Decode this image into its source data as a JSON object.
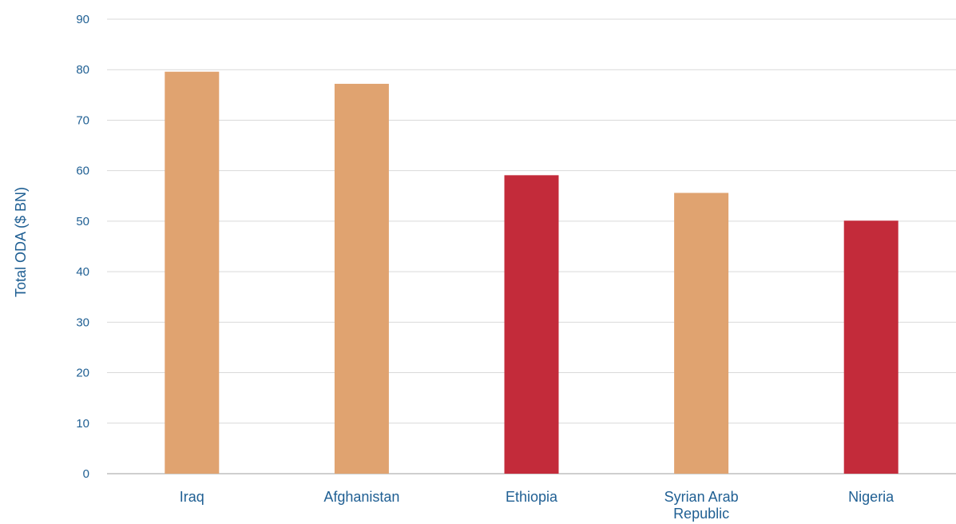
{
  "chart_data": {
    "type": "bar",
    "title": "",
    "xlabel": "",
    "ylabel": "Total ODA ($ BN)",
    "ylim": [
      0,
      90
    ],
    "yticks": [
      0,
      10,
      20,
      30,
      40,
      50,
      60,
      70,
      80,
      90
    ],
    "grid": true,
    "categories": [
      [
        "Iraq"
      ],
      [
        "Afghanistan"
      ],
      [
        "Ethiopia"
      ],
      [
        "Syrian Arab",
        "Republic"
      ],
      [
        "Nigeria"
      ]
    ],
    "values": [
      79.6,
      77.2,
      59.1,
      55.6,
      50.1
    ],
    "bar_colors": [
      "#e0a370",
      "#e0a370",
      "#c32b3a",
      "#e0a370",
      "#c32b3a"
    ]
  },
  "colors": {
    "axis_text": "#1f5f93",
    "grid": "#d9d9d9",
    "baseline": "#bfbfbf"
  }
}
